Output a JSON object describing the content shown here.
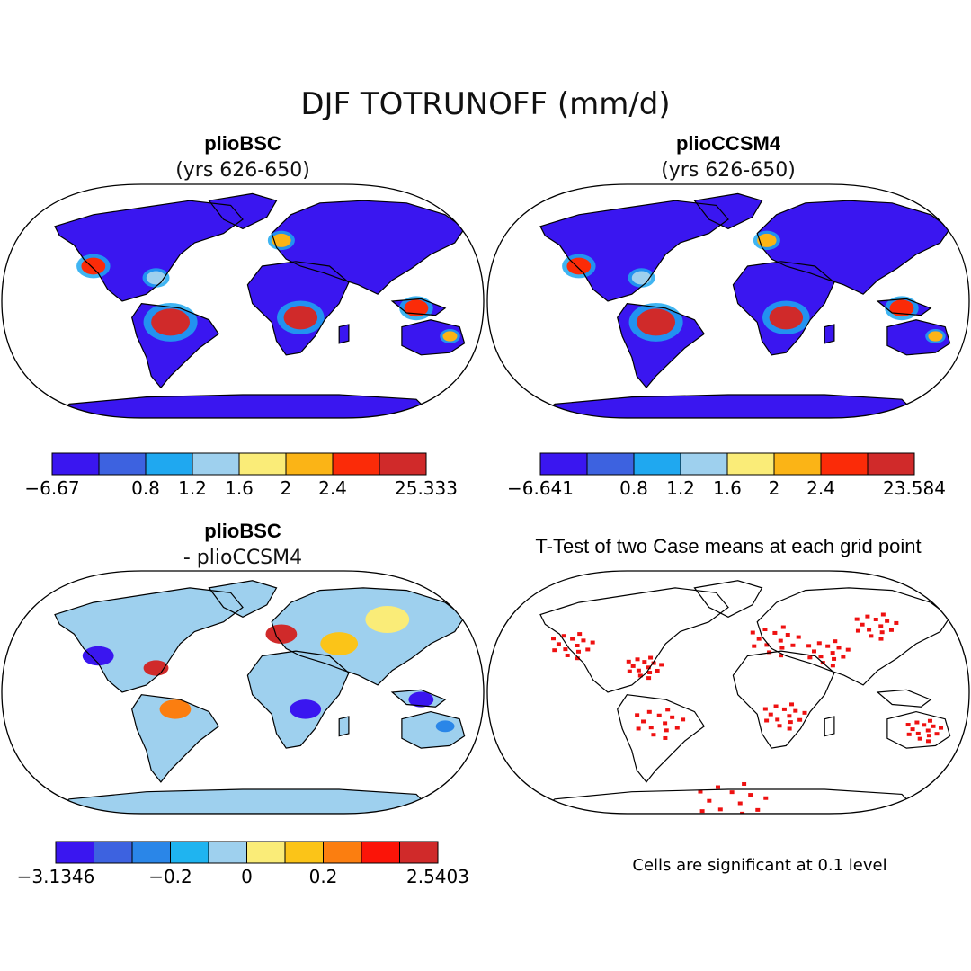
{
  "figure": {
    "title": "DJF TOTRUNOFF (mm/d)"
  },
  "panels": [
    {
      "id": "a",
      "title": "plioBSC",
      "subtitle": "(yrs 626-650)",
      "fill": "field",
      "colorbar": {
        "colors": [
          "#3a16f0",
          "#3d62e0",
          "#1fa8f0",
          "#9ed0ee",
          "#faec78",
          "#fbb416",
          "#fb2b08",
          "#d02a2a"
        ],
        "labels": [
          "-6.67",
          "0.8",
          "1.2",
          "1.6",
          "2",
          "2.4",
          "25.333"
        ]
      }
    },
    {
      "id": "b",
      "title": "plioCCSM4",
      "subtitle": "(yrs 626-650)",
      "fill": "field",
      "colorbar": {
        "colors": [
          "#3a16f0",
          "#3d62e0",
          "#1fa8f0",
          "#9ed0ee",
          "#faec78",
          "#fbb416",
          "#fb2b08",
          "#d02a2a"
        ],
        "labels": [
          "-6.641",
          "0.8",
          "1.2",
          "1.6",
          "2",
          "2.4",
          "23.584"
        ]
      }
    },
    {
      "id": "c",
      "title": "plioBSC",
      "subtitle": "- plioCCSM4",
      "fill": "difference",
      "colorbar": {
        "colors": [
          "#3a16f0",
          "#3d62e0",
          "#2a86e8",
          "#1fb4f0",
          "#9ed0ee",
          "#faec78",
          "#fbc418",
          "#fb7e10",
          "#fb1408",
          "#d02a2a"
        ],
        "labels": [
          "-3.1346",
          "-0.2",
          "0",
          "0.2",
          "2.5403"
        ]
      }
    },
    {
      "id": "d",
      "title": "T-Test of two Case means at each grid point",
      "fill": "significance",
      "note": "Cells are significant at 0.1 level"
    }
  ],
  "legend_colors": {
    "land_base": "#3a16f0",
    "diff_base": "#9ed0ee",
    "significant": "#ee1111",
    "coast": "#000000"
  }
}
